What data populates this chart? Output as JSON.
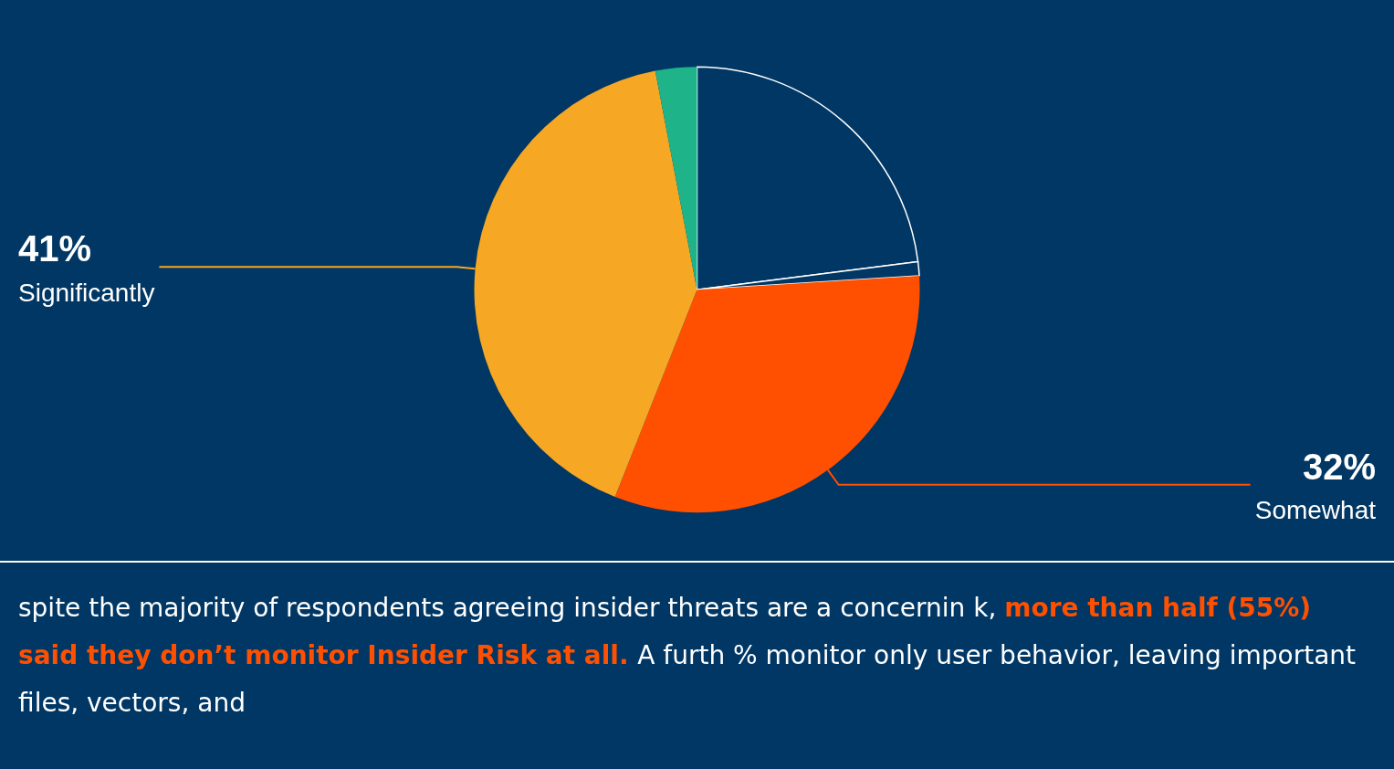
{
  "chart_data": {
    "type": "pie",
    "categories": [
      null,
      null,
      "Somewhat",
      "Significantly",
      null
    ],
    "values": [
      23,
      1,
      32,
      41,
      3
    ],
    "colors": [
      "#003764",
      "#003764",
      "#fe5000",
      "#f6a724",
      "#1fb38a"
    ],
    "value_labels": [
      null,
      null,
      "32%",
      "41%",
      null
    ],
    "annotations": [
      "spite the majority of respondents agreeing insider threats are a concernin k,",
      "more than half (55%) said they don’t monitor Insider Risk at all.",
      "A furth % monitor only user behavior, leaving important files, vectors, and"
    ]
  }
}
